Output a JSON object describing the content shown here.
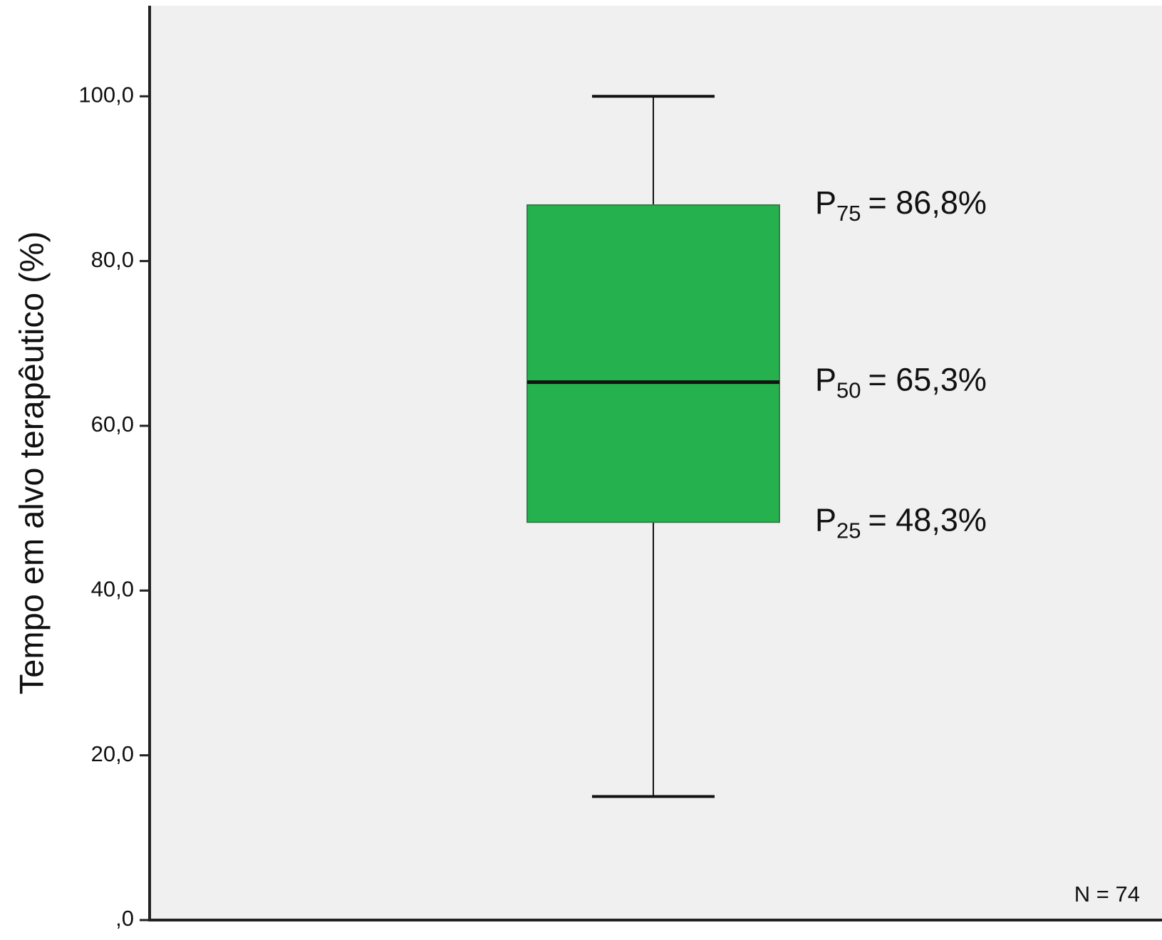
{
  "chart_data": {
    "type": "box",
    "y_label": "Tempo em alvo terapêutico (%)",
    "ylim": [
      0,
      111
    ],
    "yticks": [
      {
        "value": 0,
        "label": ",0"
      },
      {
        "value": 20,
        "label": "20,0"
      },
      {
        "value": 40,
        "label": "40,0"
      },
      {
        "value": 60,
        "label": "60,0"
      },
      {
        "value": 80,
        "label": "80,0"
      },
      {
        "value": 100,
        "label": "100,0"
      }
    ],
    "boxes": [
      {
        "min": 15,
        "q1": 48.3,
        "median": 65.3,
        "q3": 86.8,
        "max": 100,
        "color": "#25b14d"
      }
    ],
    "annotations": [
      {
        "symbol": "P",
        "subscript": "75",
        "label": "= 86,8%"
      },
      {
        "symbol": "P",
        "subscript": "50",
        "label": "= 65,3%"
      },
      {
        "symbol": "P",
        "subscript": "25",
        "label": "= 48,3%"
      }
    ],
    "n_label": "N = 74"
  }
}
